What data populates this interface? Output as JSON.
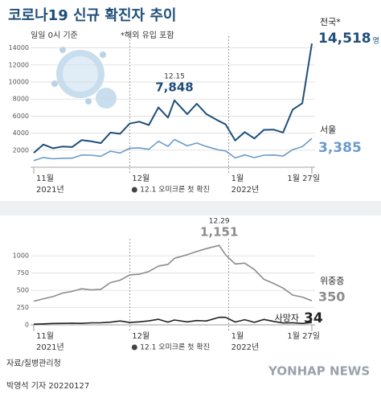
{
  "title": "코로나19 신규 확진자 추이",
  "subtitle": "일일 0시 기준",
  "note": "*해외 유입 포함",
  "source": "자료/질병관리청",
  "credit": "박영석 기자 20220127",
  "watermark": "YONHAP NEWS",
  "chart_data": [
    {
      "type": "line",
      "x": [
        "2021-11-01",
        "2021-11-04",
        "2021-11-07",
        "2021-11-10",
        "2021-11-13",
        "2021-11-16",
        "2021-11-19",
        "2021-11-22",
        "2021-11-25",
        "2021-11-28",
        "2021-12-01",
        "2021-12-04",
        "2021-12-07",
        "2021-12-10",
        "2021-12-13",
        "2021-12-15",
        "2021-12-19",
        "2021-12-22",
        "2021-12-25",
        "2021-12-29",
        "2021-12-31",
        "2022-01-03",
        "2022-01-06",
        "2022-01-09",
        "2022-01-12",
        "2022-01-15",
        "2022-01-18",
        "2022-01-21",
        "2022-01-24",
        "2022-01-27"
      ],
      "xlim": [
        "2021-11-01",
        "2022-01-27"
      ],
      "xticks": [
        {
          "value": "2021-11-01",
          "label": "11월"
        },
        {
          "value": "2021-12-01",
          "label": "12월"
        },
        {
          "value": "2022-01-01",
          "label": "1월"
        },
        {
          "value": "2022-01-27",
          "label": "1월 27일"
        }
      ],
      "year_labels": [
        {
          "value": "2021-11-01",
          "label": "2021년"
        },
        {
          "value": "2022-01-01",
          "label": "2022년"
        }
      ],
      "ylim": [
        0,
        15000
      ],
      "yticks": [
        2000,
        4000,
        6000,
        8000,
        10000,
        12000,
        14000
      ],
      "grid": true,
      "series": [
        {
          "name": "전국*",
          "color": "#1f4e79",
          "end_label": "14,518",
          "end_unit": "명",
          "values": [
            1686,
            2667,
            2224,
            2425,
            2368,
            3187,
            3034,
            2827,
            4068,
            3928,
            5123,
            5352,
            4954,
            7022,
            5817,
            7848,
            6236,
            7456,
            6233,
            5409,
            5035,
            3129,
            4126,
            3376,
            4385,
            4419,
            4071,
            6767,
            7513,
            14518
          ]
        },
        {
          "name": "서울",
          "color": "#6b9bc8",
          "end_label": "3,385",
          "values": [
            783,
            1141,
            987,
            1057,
            1066,
            1436,
            1411,
            1292,
            1888,
            1672,
            2222,
            2273,
            2101,
            3045,
            2441,
            3255,
            2509,
            2842,
            2431,
            2022,
            1918,
            1090,
            1445,
            1135,
            1415,
            1430,
            1307,
            2070,
            2418,
            3385
          ]
        }
      ],
      "annotations": [
        {
          "series": 0,
          "x": "2021-12-15",
          "text": "12.15",
          "value_text": "7,848"
        }
      ],
      "marker": {
        "x": "2021-12-01",
        "text": "12.1 오미크론 첫 확진"
      }
    },
    {
      "type": "line",
      "x": [
        "2021-11-01",
        "2021-11-04",
        "2021-11-07",
        "2021-11-10",
        "2021-11-13",
        "2021-11-16",
        "2021-11-19",
        "2021-11-22",
        "2021-11-25",
        "2021-11-28",
        "2021-12-01",
        "2021-12-04",
        "2021-12-07",
        "2021-12-10",
        "2021-12-13",
        "2021-12-15",
        "2021-12-19",
        "2021-12-22",
        "2021-12-25",
        "2021-12-29",
        "2021-12-31",
        "2022-01-03",
        "2022-01-06",
        "2022-01-09",
        "2022-01-12",
        "2022-01-15",
        "2022-01-18",
        "2022-01-21",
        "2022-01-24",
        "2022-01-27"
      ],
      "xlim": [
        "2021-11-01",
        "2022-01-27"
      ],
      "xticks": [
        {
          "value": "2021-11-01",
          "label": "11월"
        },
        {
          "value": "2021-12-01",
          "label": "12월"
        },
        {
          "value": "2022-01-01",
          "label": "1월"
        },
        {
          "value": "2022-01-27",
          "label": "1월 27일"
        }
      ],
      "year_labels": [
        {
          "value": "2021-11-01",
          "label": "2021년"
        },
        {
          "value": "2022-01-01",
          "label": "2022년"
        }
      ],
      "ylim": [
        0,
        1200
      ],
      "yticks": [
        0,
        250,
        500,
        750,
        1000
      ],
      "grid": true,
      "series": [
        {
          "name": "위중증",
          "color": "#8c8c8c",
          "end_label": "350",
          "values": [
            343,
            378,
            409,
            460,
            485,
            522,
            506,
            515,
            612,
            647,
            723,
            733,
            774,
            852,
            876,
            964,
            1016,
            1063,
            1105,
            1151,
            1015,
            882,
            894,
            802,
            659,
            600,
            532,
            431,
            402,
            350
          ]
        },
        {
          "name": "사망자",
          "color": "#222222",
          "end_label": "34",
          "values": [
            9,
            14,
            20,
            21,
            25,
            21,
            29,
            30,
            39,
            56,
            34,
            43,
            57,
            80,
            40,
            70,
            43,
            62,
            56,
            109,
            108,
            41,
            74,
            36,
            78,
            50,
            27,
            30,
            20,
            34
          ]
        }
      ],
      "annotations": [
        {
          "series": 0,
          "x": "2021-12-29",
          "text": "12.29",
          "value_text": "1,151"
        }
      ],
      "marker": {
        "x": "2021-12-01",
        "text": "12.1 오미크론 첫 확진"
      }
    }
  ]
}
